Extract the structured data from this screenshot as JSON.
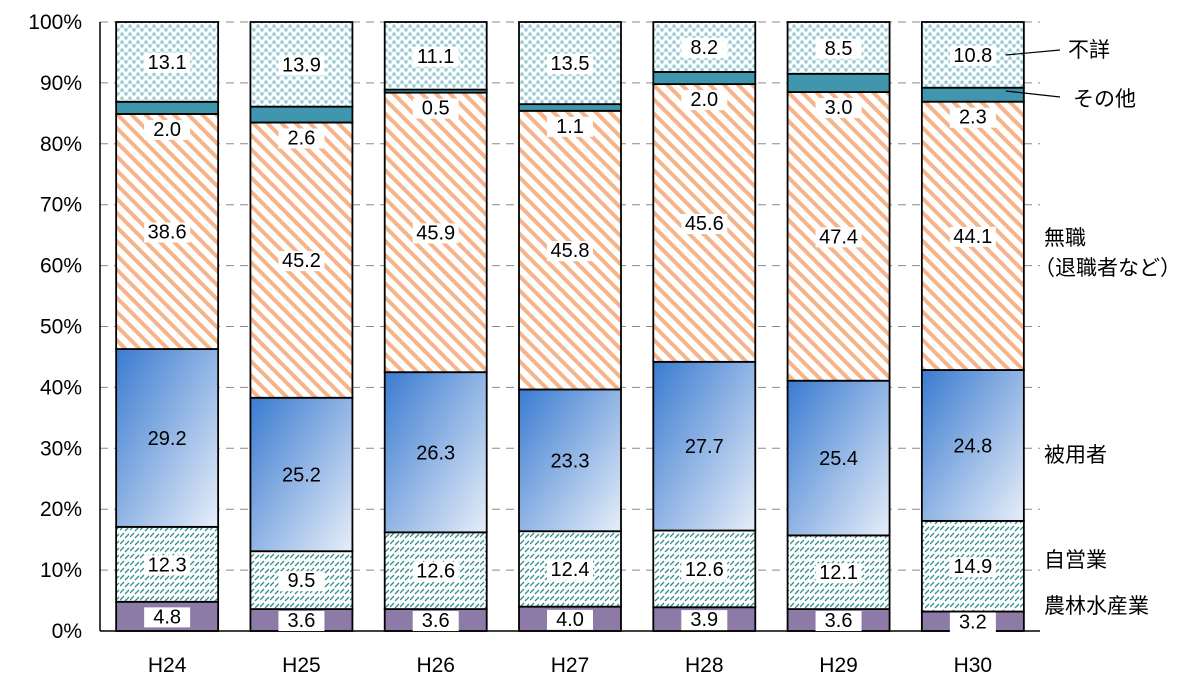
{
  "chart_data": {
    "type": "bar",
    "stacked": true,
    "percent_stacked": true,
    "categories": [
      "H24",
      "H25",
      "H26",
      "H27",
      "H28",
      "H29",
      "H30"
    ],
    "series": [
      {
        "name": "農林水産業",
        "values": [
          4.8,
          3.6,
          3.6,
          4.0,
          3.9,
          3.6,
          3.2
        ]
      },
      {
        "name": "自営業",
        "values": [
          12.3,
          9.5,
          12.6,
          12.4,
          12.6,
          12.1,
          14.9
        ]
      },
      {
        "name": "被用者",
        "values": [
          29.2,
          25.2,
          26.3,
          23.3,
          27.7,
          25.4,
          24.8
        ]
      },
      {
        "name": "無職\n（退職者など）",
        "values": [
          38.6,
          45.2,
          45.9,
          45.8,
          45.6,
          47.4,
          44.1
        ]
      },
      {
        "name": "その他",
        "values": [
          2.0,
          2.6,
          0.5,
          1.1,
          2.0,
          3.0,
          2.3
        ]
      },
      {
        "name": "不詳",
        "values": [
          13.1,
          13.9,
          11.1,
          13.5,
          8.2,
          8.5,
          10.8
        ]
      }
    ],
    "y_ticks": [
      "0%",
      "10%",
      "20%",
      "30%",
      "40%",
      "50%",
      "60%",
      "70%",
      "80%",
      "90%",
      "100%"
    ],
    "ylim": [
      0,
      100
    ],
    "grid": "horizontal dashed",
    "legend": "right, labels aligned to segments of last bar",
    "colors": {
      "農林水産業": "#8e7aa6",
      "自営業": "#2f8f8a",
      "被用者": "#3a7bd0",
      "無職": "#f6b48a",
      "その他": "#4f9bb0",
      "不詳": "#9fd0da"
    }
  }
}
